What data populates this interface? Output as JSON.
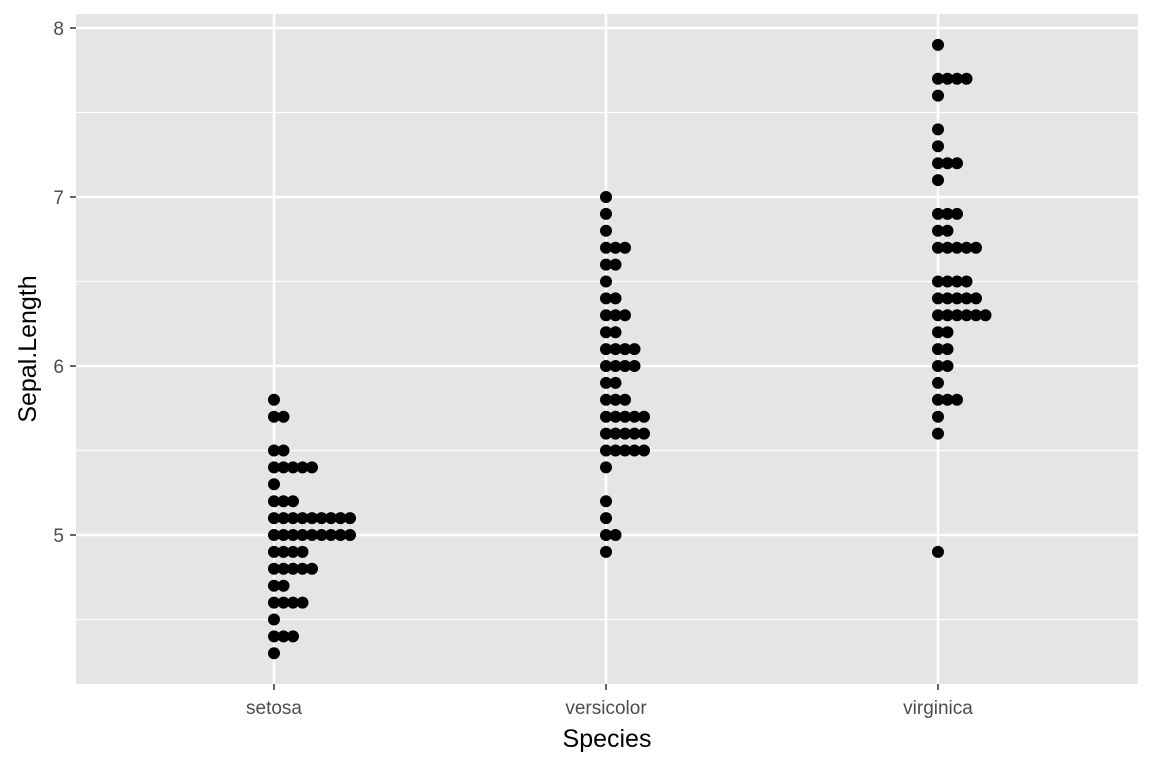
{
  "chart_data": {
    "type": "dotplot",
    "xlabel": "Species",
    "ylabel": "Sepal.Length",
    "categories": [
      "setosa",
      "versicolor",
      "virginica"
    ],
    "ylim": [
      4.2,
      8.1
    ],
    "yticks": [
      5,
      6,
      7,
      8
    ],
    "grid": true,
    "panel_background": "#e5e5e5",
    "gridline_color": "#ffffff",
    "point_color": "#000000",
    "bins": {
      "setosa": [
        {
          "y": 5.8,
          "count": 1
        },
        {
          "y": 5.7,
          "count": 2
        },
        {
          "y": 5.5,
          "count": 2
        },
        {
          "y": 5.4,
          "count": 5
        },
        {
          "y": 5.3,
          "count": 1
        },
        {
          "y": 5.2,
          "count": 3
        },
        {
          "y": 5.1,
          "count": 9
        },
        {
          "y": 5.0,
          "count": 9
        },
        {
          "y": 4.9,
          "count": 4
        },
        {
          "y": 4.8,
          "count": 5
        },
        {
          "y": 4.7,
          "count": 2
        },
        {
          "y": 4.6,
          "count": 4
        },
        {
          "y": 4.5,
          "count": 1
        },
        {
          "y": 4.4,
          "count": 3
        },
        {
          "y": 4.3,
          "count": 1
        }
      ],
      "versicolor": [
        {
          "y": 7.0,
          "count": 1
        },
        {
          "y": 6.9,
          "count": 1
        },
        {
          "y": 6.8,
          "count": 1
        },
        {
          "y": 6.7,
          "count": 3
        },
        {
          "y": 6.6,
          "count": 2
        },
        {
          "y": 6.5,
          "count": 1
        },
        {
          "y": 6.4,
          "count": 2
        },
        {
          "y": 6.3,
          "count": 3
        },
        {
          "y": 6.2,
          "count": 2
        },
        {
          "y": 6.1,
          "count": 4
        },
        {
          "y": 6.0,
          "count": 4
        },
        {
          "y": 5.9,
          "count": 2
        },
        {
          "y": 5.8,
          "count": 3
        },
        {
          "y": 5.7,
          "count": 5
        },
        {
          "y": 5.6,
          "count": 5
        },
        {
          "y": 5.5,
          "count": 5
        },
        {
          "y": 5.4,
          "count": 1
        },
        {
          "y": 5.2,
          "count": 1
        },
        {
          "y": 5.1,
          "count": 1
        },
        {
          "y": 5.0,
          "count": 2
        },
        {
          "y": 4.9,
          "count": 1
        }
      ],
      "virginica": [
        {
          "y": 7.9,
          "count": 1
        },
        {
          "y": 7.7,
          "count": 4
        },
        {
          "y": 7.6,
          "count": 1
        },
        {
          "y": 7.4,
          "count": 1
        },
        {
          "y": 7.3,
          "count": 1
        },
        {
          "y": 7.2,
          "count": 3
        },
        {
          "y": 7.1,
          "count": 1
        },
        {
          "y": 6.9,
          "count": 3
        },
        {
          "y": 6.8,
          "count": 2
        },
        {
          "y": 6.7,
          "count": 5
        },
        {
          "y": 6.5,
          "count": 4
        },
        {
          "y": 6.4,
          "count": 5
        },
        {
          "y": 6.3,
          "count": 6
        },
        {
          "y": 6.2,
          "count": 2
        },
        {
          "y": 6.1,
          "count": 2
        },
        {
          "y": 6.0,
          "count": 2
        },
        {
          "y": 5.9,
          "count": 1
        },
        {
          "y": 5.8,
          "count": 3
        },
        {
          "y": 5.7,
          "count": 1
        },
        {
          "y": 5.6,
          "count": 1
        },
        {
          "y": 4.9,
          "count": 1
        }
      ]
    }
  }
}
